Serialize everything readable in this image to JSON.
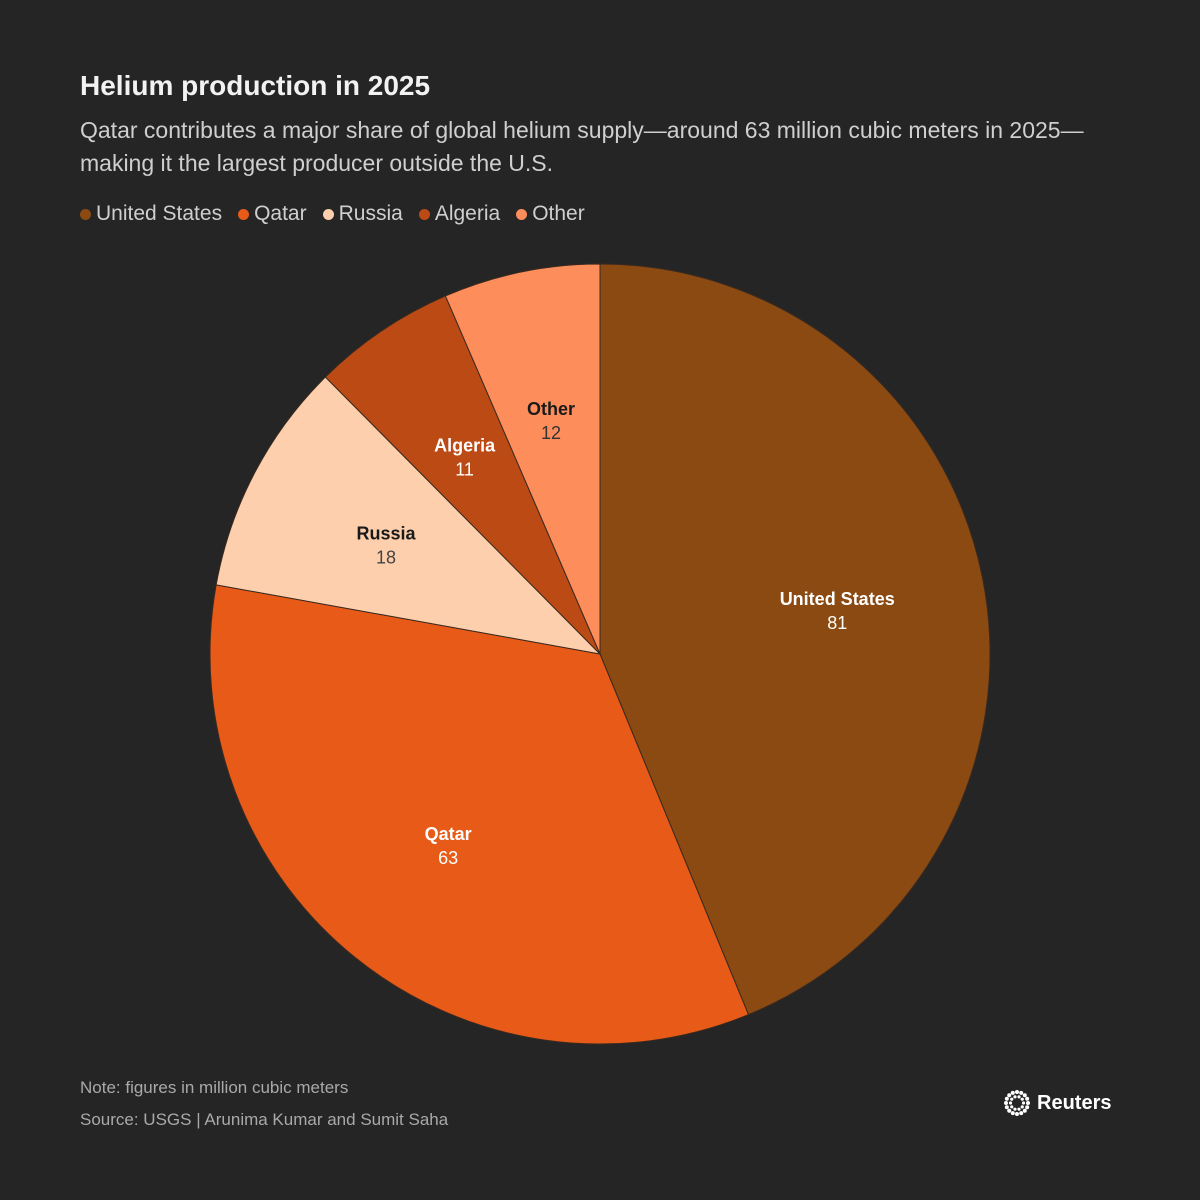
{
  "header": {
    "title": "Helium production in 2025",
    "subtitle": "Qatar contributes a major share of global helium supply—around 63 million cubic meters in 2025—making it the largest producer outside the U.S."
  },
  "chart_data": {
    "type": "pie",
    "title": "Helium production in 2025",
    "unit": "million cubic meters",
    "legend_position": "top-left",
    "slices": [
      {
        "label": "United States",
        "value": 81,
        "color": "#8b4a11",
        "label_color": "#ffffff",
        "value_color": "#ffffff"
      },
      {
        "label": "Qatar",
        "value": 63,
        "color": "#e85a17",
        "label_color": "#ffffff",
        "value_color": "#ffffff"
      },
      {
        "label": "Russia",
        "value": 18,
        "color": "#fdcfad",
        "label_color": "#1a1a1a",
        "value_color": "#444444"
      },
      {
        "label": "Algeria",
        "value": 11,
        "color": "#bc4a14",
        "label_color": "#ffffff",
        "value_color": "#ffffff"
      },
      {
        "label": "Other",
        "value": 12,
        "color": "#fd8d5a",
        "label_color": "#1a1a1a",
        "value_color": "#333333"
      }
    ]
  },
  "footer": {
    "note": "Note: figures in million cubic meters",
    "source": "Source: USGS | Arunima Kumar and Sumit Saha",
    "brand": "Reuters"
  },
  "colors": {
    "background": "#252525",
    "slice_border": "#3a2a20"
  }
}
